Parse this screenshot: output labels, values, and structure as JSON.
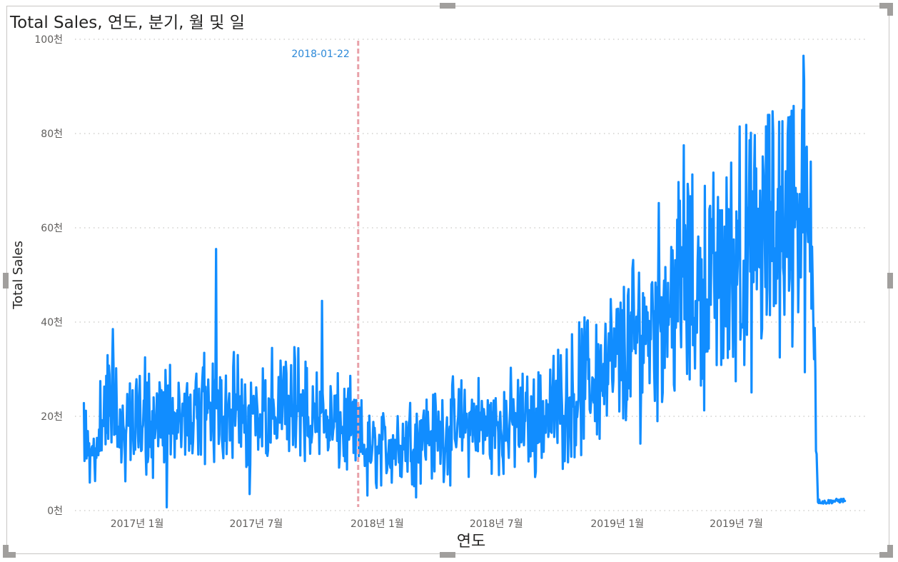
{
  "visual": {
    "title": "Total Sales, 연도, 분기, 월 및 일"
  },
  "chart_data": {
    "type": "line",
    "title": "Total Sales, 연도, 분기, 월 및 일",
    "xlabel": "연도",
    "ylabel": "Total Sales",
    "ylim": [
      0,
      100000
    ],
    "xlim": [
      "2016-11-12",
      "2020-03-06"
    ],
    "y_ticks": [
      {
        "value": 0,
        "label": "0천"
      },
      {
        "value": 20000,
        "label": "20천"
      },
      {
        "value": 40000,
        "label": "40천"
      },
      {
        "value": 60000,
        "label": "60천"
      },
      {
        "value": 80000,
        "label": "80천"
      },
      {
        "value": 100000,
        "label": "100천"
      }
    ],
    "x_ticks": [
      {
        "date": "2017-01-01",
        "label": "2017년 1월"
      },
      {
        "date": "2017-07-01",
        "label": "2017년 7월"
      },
      {
        "date": "2018-01-01",
        "label": "2018년 1월"
      },
      {
        "date": "2018-07-01",
        "label": "2018년 7월"
      },
      {
        "date": "2019-01-01",
        "label": "2019년 1월"
      },
      {
        "date": "2019-07-01",
        "label": "2019년 7월"
      }
    ],
    "grid": true,
    "reference_line": {
      "date": "2018-01-22",
      "label": "2018-01-22",
      "color": "#e8a0a8",
      "label_color": "#2b88d8"
    },
    "series": [
      {
        "color": "#118dff",
        "points": [
          [
            "2016-12-01",
            15500
          ],
          [
            "2016-12-15",
            12500
          ],
          [
            "2017-01-01",
            20000
          ],
          [
            "2017-01-15",
            24000
          ],
          [
            "2017-02-01",
            16000
          ],
          [
            "2017-02-15",
            18000
          ],
          [
            "2017-03-01",
            21000
          ],
          [
            "2017-03-15",
            17000
          ],
          [
            "2017-04-01",
            20000
          ],
          [
            "2017-04-15",
            18500
          ],
          [
            "2017-05-01",
            19000
          ],
          [
            "2017-05-15",
            18500
          ],
          [
            "2017-06-01",
            20000
          ],
          [
            "2017-06-15",
            23000
          ],
          [
            "2017-07-01",
            22000
          ],
          [
            "2017-07-15",
            21000
          ],
          [
            "2017-08-01",
            20500
          ],
          [
            "2017-08-15",
            21500
          ],
          [
            "2017-09-01",
            22000
          ],
          [
            "2017-09-15",
            21000
          ],
          [
            "2017-10-01",
            22500
          ],
          [
            "2017-10-15",
            22000
          ],
          [
            "2017-11-01",
            21500
          ],
          [
            "2017-11-15",
            20000
          ],
          [
            "2017-12-01",
            18500
          ],
          [
            "2017-12-15",
            18000
          ],
          [
            "2018-01-01",
            17500
          ],
          [
            "2018-01-15",
            16500
          ],
          [
            "2018-02-01",
            13500
          ],
          [
            "2018-02-15",
            12500
          ],
          [
            "2018-03-01",
            13000
          ],
          [
            "2018-03-15",
            14000
          ],
          [
            "2018-04-01",
            14500
          ],
          [
            "2018-04-15",
            16000
          ],
          [
            "2018-05-01",
            17000
          ],
          [
            "2018-05-15",
            16000
          ],
          [
            "2018-06-01",
            16500
          ],
          [
            "2018-06-15",
            17000
          ],
          [
            "2018-07-01",
            18000
          ],
          [
            "2018-07-15",
            18500
          ],
          [
            "2018-08-01",
            18000
          ],
          [
            "2018-08-15",
            17500
          ],
          [
            "2018-09-01",
            18000
          ],
          [
            "2018-09-15",
            18500
          ],
          [
            "2018-10-01",
            19000
          ],
          [
            "2018-10-15",
            18500
          ],
          [
            "2018-11-01",
            20500
          ],
          [
            "2018-11-15",
            21500
          ],
          [
            "2018-12-01",
            23000
          ],
          [
            "2018-12-15",
            24500
          ],
          [
            "2019-01-01",
            27000
          ],
          [
            "2019-01-15",
            28000
          ],
          [
            "2019-02-01",
            30000
          ],
          [
            "2019-02-15",
            31000
          ],
          [
            "2019-03-01",
            33000
          ],
          [
            "2019-03-15",
            35000
          ],
          [
            "2019-04-01",
            38000
          ],
          [
            "2019-04-15",
            41000
          ],
          [
            "2019-05-01",
            44000
          ],
          [
            "2019-05-15",
            46000
          ],
          [
            "2019-06-01",
            47000
          ],
          [
            "2019-06-15",
            46000
          ],
          [
            "2019-07-01",
            47000
          ],
          [
            "2019-07-15",
            48000
          ],
          [
            "2019-08-01",
            50000
          ],
          [
            "2019-08-15",
            51000
          ],
          [
            "2019-09-01",
            53000
          ],
          [
            "2019-09-15",
            55000
          ],
          [
            "2019-10-01",
            57000
          ],
          [
            "2019-10-15",
            59000
          ],
          [
            "2019-11-01",
            62000
          ],
          [
            "2019-11-15",
            65000
          ],
          [
            "2019-12-01",
            62000
          ],
          [
            "2019-12-15",
            48000
          ],
          [
            "2019-12-22",
            2000
          ],
          [
            "2020-01-01",
            1800
          ],
          [
            "2020-01-15",
            2000
          ],
          [
            "2020-02-01",
            2200
          ]
        ]
      }
    ],
    "spikes": [
      {
        "date": "2017-01-14",
        "value": 38500
      },
      {
        "date": "2017-06-20",
        "value": 55500
      },
      {
        "date": "2017-11-28",
        "value": 44500
      },
      {
        "date": "2019-06-01",
        "value": 77500
      },
      {
        "date": "2019-08-25",
        "value": 81500
      },
      {
        "date": "2019-10-24",
        "value": 82500
      },
      {
        "date": "2019-11-30",
        "value": 96500
      }
    ],
    "dips": [
      {
        "date": "2017-04-06",
        "value": 700
      },
      {
        "date": "2017-08-10",
        "value": 3500
      },
      {
        "date": "2018-02-05",
        "value": 3200
      },
      {
        "date": "2018-04-20",
        "value": 2800
      }
    ]
  }
}
